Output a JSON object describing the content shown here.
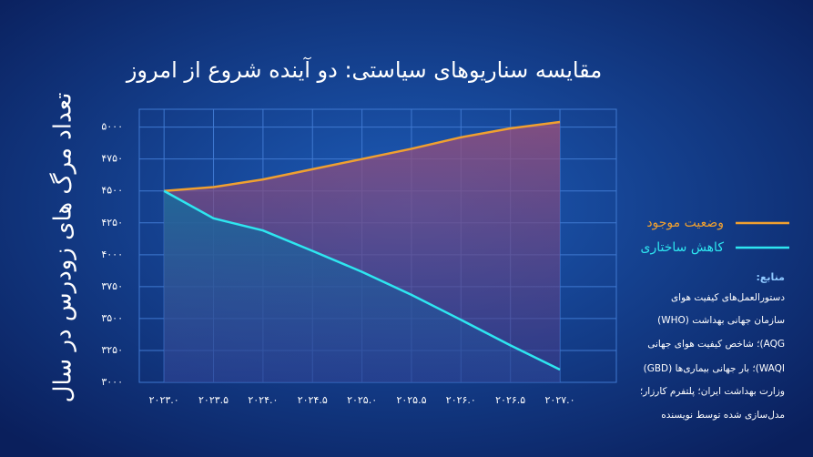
{
  "chart_data": {
    "type": "line",
    "title": "مقایسه سناریوهای سیاستی: دو آینده شروع از امروز",
    "y_label": "تعداد مرگ های زودرس در سال",
    "x": [
      2023,
      2023.5,
      2024,
      2024.5,
      2025,
      2025.5,
      2026,
      2026.5,
      2027
    ],
    "series": [
      {
        "name": "وضعیت موجود",
        "color": "#f0a030",
        "values": [
          4500,
          4530,
          4590,
          4670,
          4750,
          4830,
          4920,
          4990,
          5040
        ]
      },
      {
        "name": "کاهش ساختاری",
        "color": "#2ee6f0",
        "values": [
          4500,
          4285,
          4190,
          4030,
          3866,
          3686,
          3490,
          3290,
          3100
        ]
      }
    ],
    "xlim": [
      2022.75,
      2027.57
    ],
    "xticks": [
      {
        "value": 2023,
        "label": "۲۰۲۳.۰"
      },
      {
        "value": 2023.5,
        "label": "۲۰۲۳.۵"
      },
      {
        "value": 2024,
        "label": "۲۰۲۴.۰"
      },
      {
        "value": 2024.5,
        "label": "۲۰۲۴.۵"
      },
      {
        "value": 2025,
        "label": "۲۰۲۵.۰"
      },
      {
        "value": 2025.5,
        "label": "۲۰۲۵.۵"
      },
      {
        "value": 2026,
        "label": "۲۰۲۶.۰"
      },
      {
        "value": 2026.5,
        "label": "۲۰۲۶.۵"
      },
      {
        "value": 2027,
        "label": "۲۰۲۷.۰"
      }
    ],
    "ylim": [
      3000,
      5140
    ],
    "yticks": [
      {
        "value": 3000,
        "label": "۳۰۰۰"
      },
      {
        "value": 3250,
        "label": "۳۲۵۰"
      },
      {
        "value": 3500,
        "label": "۳۵۰۰"
      },
      {
        "value": 3750,
        "label": "۳۷۵۰"
      },
      {
        "value": 4000,
        "label": "۴۰۰۰"
      },
      {
        "value": 4250,
        "label": "۴۲۵۰"
      },
      {
        "value": 4500,
        "label": "۴۵۰۰"
      },
      {
        "value": 4750,
        "label": "۴۷۵۰"
      },
      {
        "value": 5000,
        "label": "۵۰۰۰"
      }
    ],
    "grid": true,
    "legend": "right",
    "sources_title": "منابع:",
    "sources": [
      "دستورالعمل‌های کیفیت هوای",
      "سازمان جهانی بهداشت (WHO)",
      "AQG)؛ شاخص کیفیت هوای جهانی",
      "WAQI)؛ بار جهانی بیماری‌ها (GBD)",
      "وزارت بهداشت ایران؛ پلتفرم کارزار؛",
      "مدل‌سازی شده توسط نویسنده"
    ]
  }
}
